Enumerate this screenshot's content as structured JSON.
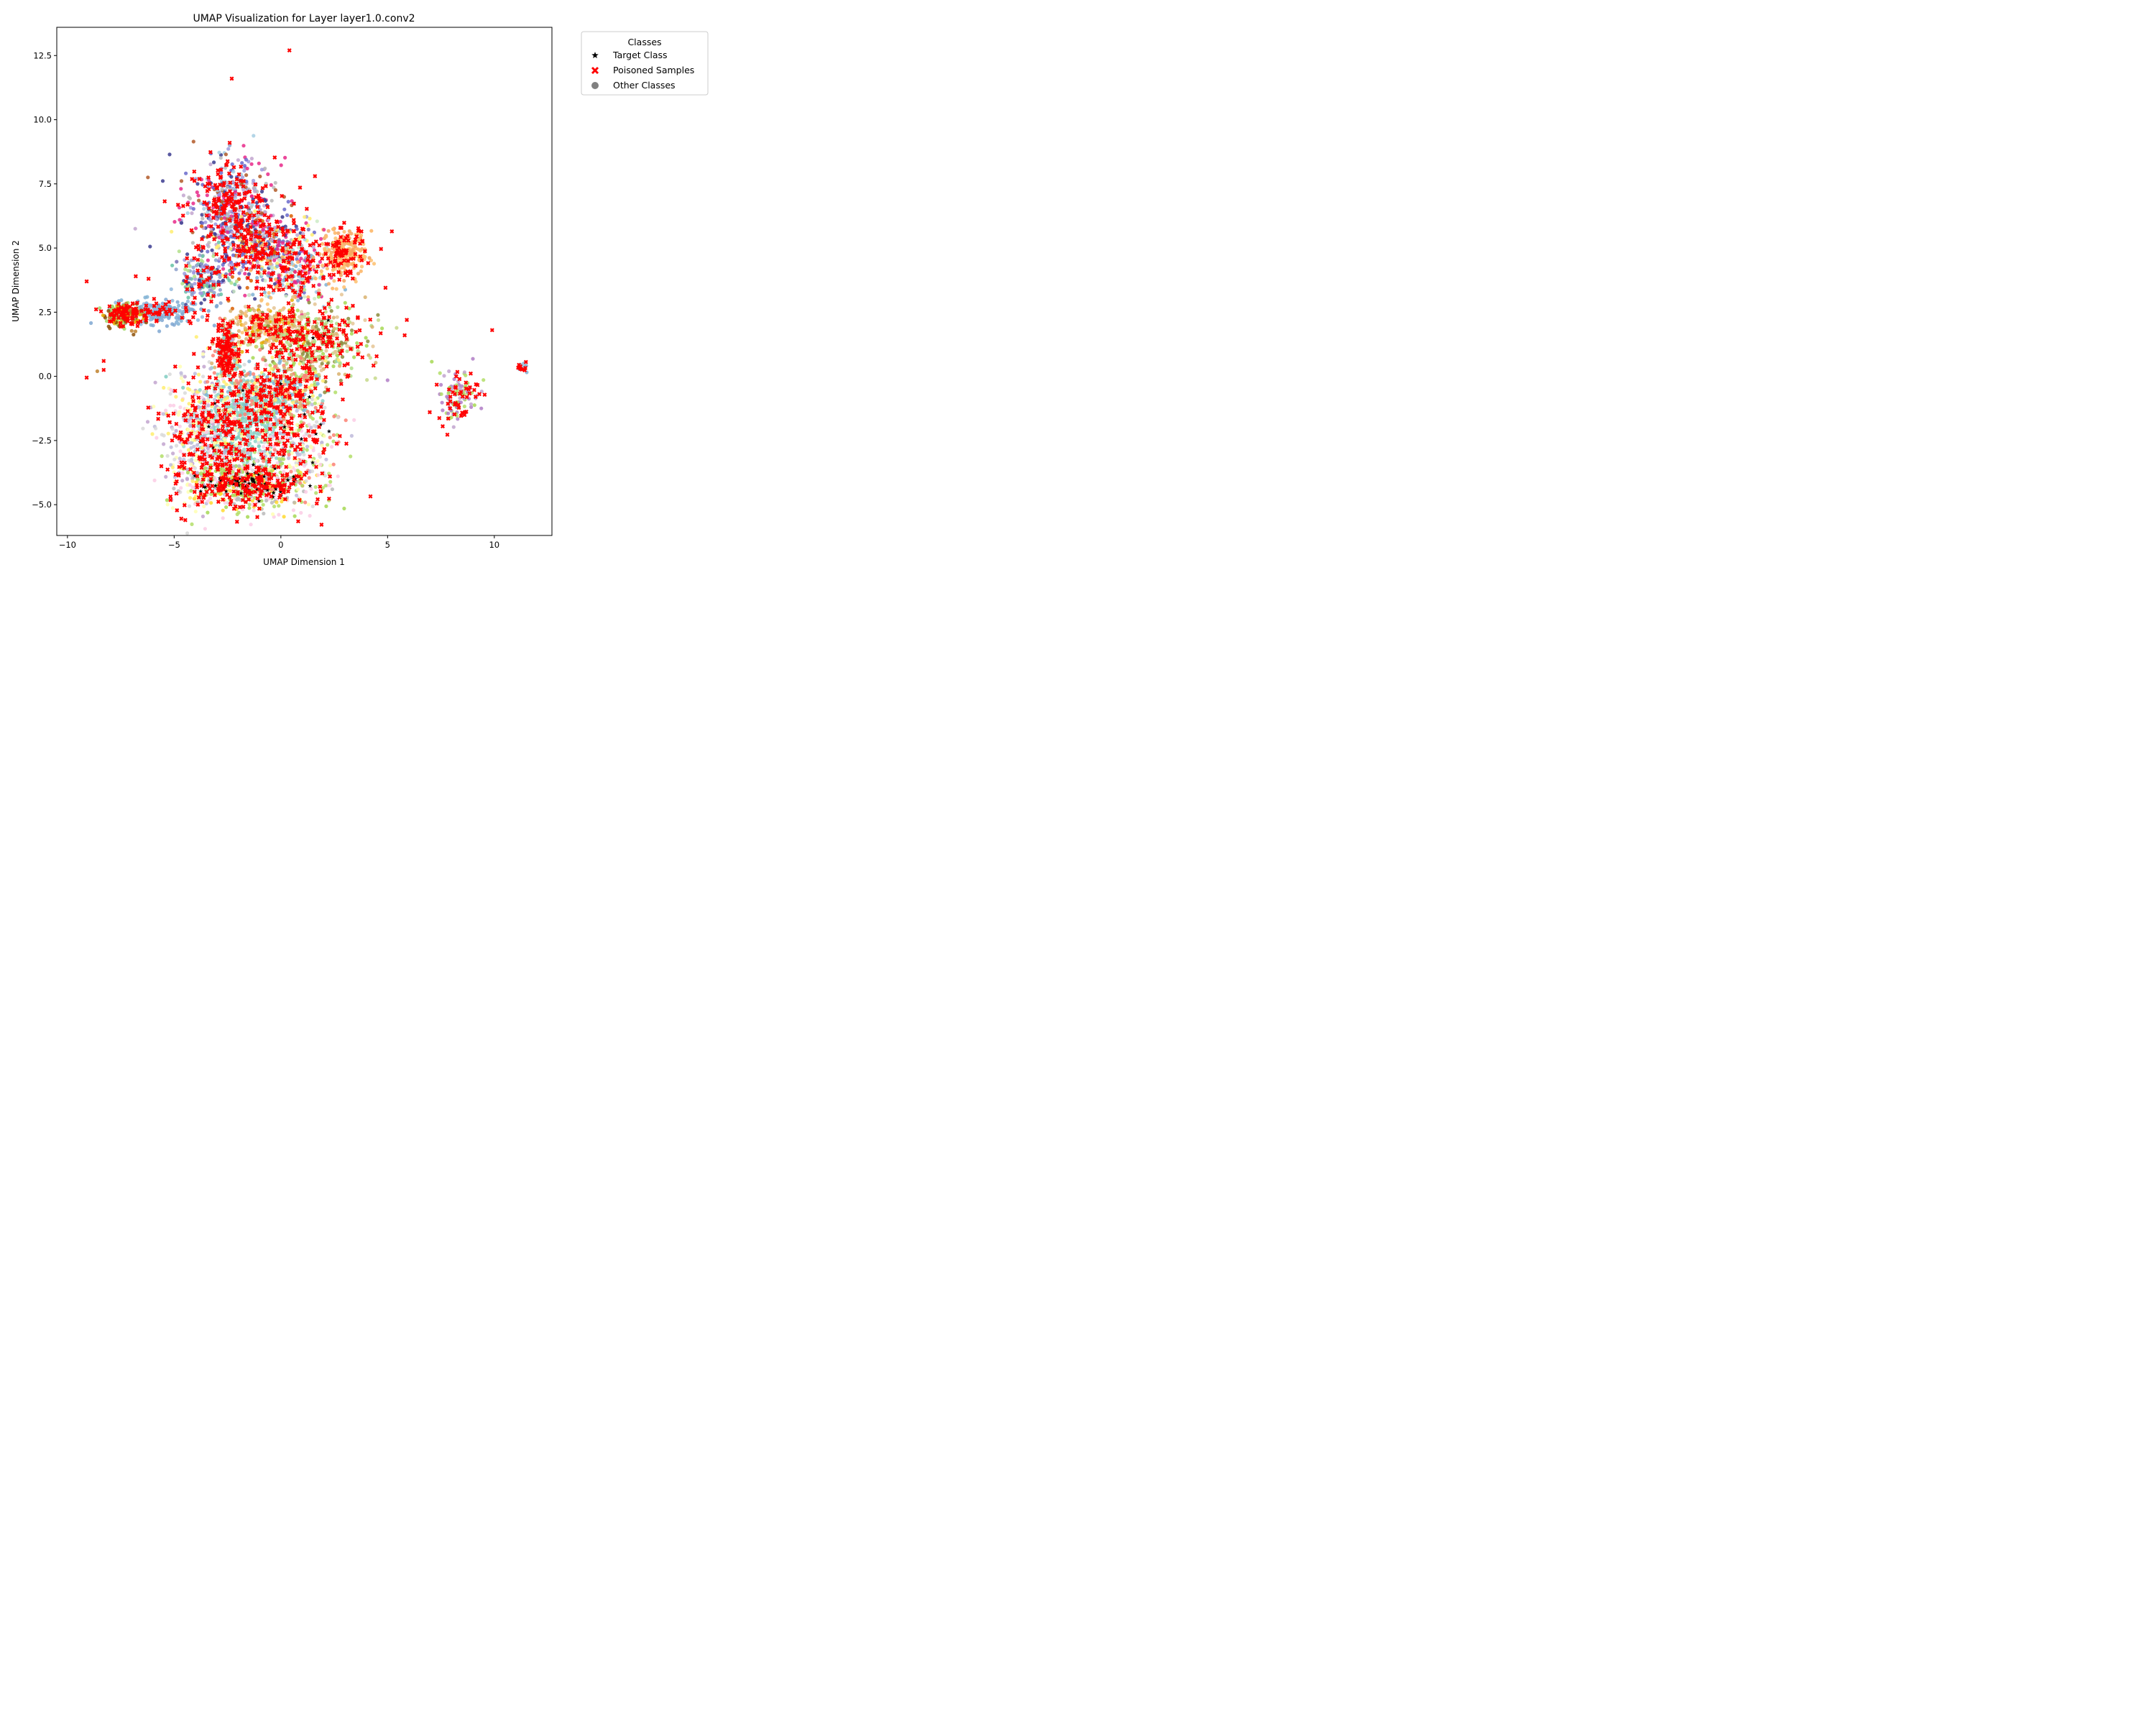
{
  "chart_data": {
    "type": "scatter",
    "title": "UMAP Visualization for Layer layer1.0.conv2",
    "xlabel": "UMAP Dimension 1",
    "ylabel": "UMAP Dimension 2",
    "xlim": [
      -10.5,
      12.7
    ],
    "ylim": [
      -6.2,
      13.6
    ],
    "xticks": [
      -10,
      -5,
      0,
      5,
      10
    ],
    "xtick_labels": [
      "−10",
      "−5",
      "0",
      "5",
      "10"
    ],
    "yticks": [
      -5.0,
      -2.5,
      0.0,
      2.5,
      5.0,
      7.5,
      10.0,
      12.5
    ],
    "ytick_labels": [
      "−5.0",
      "−2.5",
      "0.0",
      "2.5",
      "5.0",
      "7.5",
      "10.0",
      "12.5"
    ],
    "grid": false,
    "legend": {
      "title": "Classes",
      "placement": "outside-top-right",
      "entries": [
        {
          "label": "Target Class",
          "marker": "star",
          "color": "#000000"
        },
        {
          "label": "Poisoned Samples",
          "marker": "x",
          "color": "#ff0000"
        },
        {
          "label": "Other Classes",
          "marker": "circle",
          "color": "#808080"
        }
      ]
    },
    "regions": [
      {
        "x": -2.4,
        "y": 6.6,
        "sx": 1.1,
        "sy": 1.0,
        "n": 420,
        "poisoned": 160,
        "target": 0,
        "colors": [
          "#3b3b8f",
          "#6a6acb",
          "#9e9ade",
          "#e7298a",
          "#b15928",
          "#bababa",
          "#c2a5cf",
          "#a6cee3"
        ]
      },
      {
        "x": -0.8,
        "y": 5.0,
        "sx": 1.3,
        "sy": 0.7,
        "n": 380,
        "poisoned": 130,
        "target": 0,
        "colors": [
          "#e7298a",
          "#7570b3",
          "#6a6acb",
          "#3b3b8f",
          "#d95f02",
          "#c2a5cf",
          "#bababa",
          "#ffed6f"
        ]
      },
      {
        "x": 0.5,
        "y": 4.0,
        "sx": 0.9,
        "sy": 0.6,
        "n": 200,
        "poisoned": 60,
        "target": 0,
        "colors": [
          "#e7298a",
          "#80b1d3",
          "#a6cee3",
          "#ccebc5",
          "#fdb462"
        ]
      },
      {
        "x": -3.5,
        "y": 3.8,
        "sx": 0.6,
        "sy": 0.5,
        "n": 150,
        "poisoned": 30,
        "target": 0,
        "colors": [
          "#3b3b8f",
          "#9e9ade",
          "#8da0cb",
          "#66c2a5",
          "#b2df8a"
        ]
      },
      {
        "x": 3.0,
        "y": 4.8,
        "sx": 0.5,
        "sy": 0.5,
        "n": 200,
        "poisoned": 70,
        "target": 0,
        "colors": [
          "#fdb462",
          "#fdbf6f",
          "#f4a460"
        ]
      },
      {
        "x": -5.5,
        "y": 2.5,
        "sx": 1.0,
        "sy": 0.25,
        "n": 180,
        "poisoned": 45,
        "target": 0,
        "colors": [
          "#7fa7d1",
          "#80b1d3",
          "#92b8dc"
        ]
      },
      {
        "x": -7.4,
        "y": 2.4,
        "sx": 0.45,
        "sy": 0.25,
        "n": 130,
        "poisoned": 70,
        "target": 0,
        "colors": [
          "#8c510a",
          "#a1d76a",
          "#bf812d",
          "#e6ab02"
        ]
      },
      {
        "x": -0.6,
        "y": 1.9,
        "sx": 0.9,
        "sy": 0.4,
        "n": 240,
        "poisoned": 50,
        "target": 0,
        "colors": [
          "#e5c494",
          "#e6ab02",
          "#d9b26f",
          "#fdbf6f"
        ]
      },
      {
        "x": 1.5,
        "y": 1.3,
        "sx": 1.3,
        "sy": 0.8,
        "n": 360,
        "poisoned": 150,
        "target": 3,
        "colors": [
          "#b2df8a",
          "#c7d98b",
          "#8c8c3c",
          "#d9b26f",
          "#a6d854",
          "#e5c494"
        ]
      },
      {
        "x": -2.5,
        "y": 1.0,
        "sx": 0.3,
        "sy": 0.55,
        "n": 150,
        "poisoned": 110,
        "target": 0,
        "colors": [
          "#fb8072",
          "#8dd3c7",
          "#d9b26f"
        ]
      },
      {
        "x": -2.0,
        "y": -1.8,
        "sx": 1.0,
        "sy": 0.85,
        "n": 480,
        "poisoned": 90,
        "target": 0,
        "colors": [
          "#8dd3c7",
          "#80cdc1",
          "#9fd8cc"
        ]
      },
      {
        "x": -3.7,
        "y": -2.4,
        "sx": 0.9,
        "sy": 1.4,
        "n": 460,
        "poisoned": 160,
        "target": 4,
        "colors": [
          "#bebada",
          "#c2a5cf",
          "#ffffb3",
          "#ffed6f",
          "#fccde5",
          "#d9d9d9"
        ]
      },
      {
        "x": -1.5,
        "y": -4.2,
        "sx": 1.4,
        "sy": 0.55,
        "n": 420,
        "poisoned": 170,
        "target": 70,
        "colors": [
          "#a6d854",
          "#ffd92f",
          "#fccde5",
          "#bababa",
          "#b3de69"
        ]
      },
      {
        "x": 0.6,
        "y": -2.3,
        "sx": 1.1,
        "sy": 1.2,
        "n": 320,
        "poisoned": 110,
        "target": 8,
        "colors": [
          "#fccde5",
          "#bebada",
          "#d9d9d9",
          "#ffffb3",
          "#fb8072",
          "#b3de69"
        ]
      },
      {
        "x": -0.3,
        "y": -0.5,
        "sx": 1.2,
        "sy": 0.55,
        "n": 280,
        "poisoned": 100,
        "target": 4,
        "colors": [
          "#8dd3c7",
          "#fb8072",
          "#ffed6f",
          "#d9b26f",
          "#80b1d3"
        ]
      },
      {
        "x": 8.3,
        "y": -0.7,
        "sx": 0.5,
        "sy": 0.55,
        "n": 90,
        "poisoned": 45,
        "target": 0,
        "colors": [
          "#a6d854",
          "#b3de69",
          "#c2a5cf",
          "#b07cc6"
        ]
      },
      {
        "x": 11.3,
        "y": 0.35,
        "sx": 0.12,
        "sy": 0.08,
        "n": 20,
        "poisoned": 10,
        "target": 0,
        "colors": [
          "#80b1d3",
          "#a6cee3"
        ]
      }
    ],
    "isolated_points": [
      {
        "x": 0.4,
        "y": 12.7,
        "kind": "poisoned"
      },
      {
        "x": -2.3,
        "y": 11.6,
        "kind": "poisoned"
      },
      {
        "x": -2.4,
        "y": 9.1,
        "kind": "poisoned"
      },
      {
        "x": -2.4,
        "y": 9.0,
        "kind": "other",
        "color": "#8da0cb"
      },
      {
        "x": 1.6,
        "y": 7.8,
        "kind": "poisoned"
      },
      {
        "x": 5.2,
        "y": 5.65,
        "kind": "poisoned"
      },
      {
        "x": 4.9,
        "y": 3.45,
        "kind": "poisoned"
      },
      {
        "x": 5.9,
        "y": 2.2,
        "kind": "poisoned"
      },
      {
        "x": 5.8,
        "y": 1.6,
        "kind": "poisoned"
      },
      {
        "x": 9.9,
        "y": 1.8,
        "kind": "poisoned"
      },
      {
        "x": 5.0,
        "y": -0.15,
        "kind": "other",
        "color": "#b07cc6"
      },
      {
        "x": -9.1,
        "y": 3.7,
        "kind": "poisoned"
      },
      {
        "x": -8.3,
        "y": 0.6,
        "kind": "poisoned"
      },
      {
        "x": -8.3,
        "y": 0.25,
        "kind": "poisoned"
      },
      {
        "x": -8.6,
        "y": 0.2,
        "kind": "other",
        "color": "#bf812d"
      },
      {
        "x": -9.1,
        "y": -0.05,
        "kind": "poisoned"
      },
      {
        "x": 2.3,
        "y": -3.9,
        "kind": "poisoned"
      },
      {
        "x": 2.9,
        "y": -0.9,
        "kind": "poisoned"
      },
      {
        "x": -5.6,
        "y": -3.5,
        "kind": "poisoned"
      },
      {
        "x": -6.8,
        "y": 3.9,
        "kind": "poisoned"
      },
      {
        "x": -6.2,
        "y": 3.8,
        "kind": "poisoned"
      },
      {
        "x": -4.4,
        "y": 4.6,
        "kind": "poisoned"
      }
    ]
  }
}
